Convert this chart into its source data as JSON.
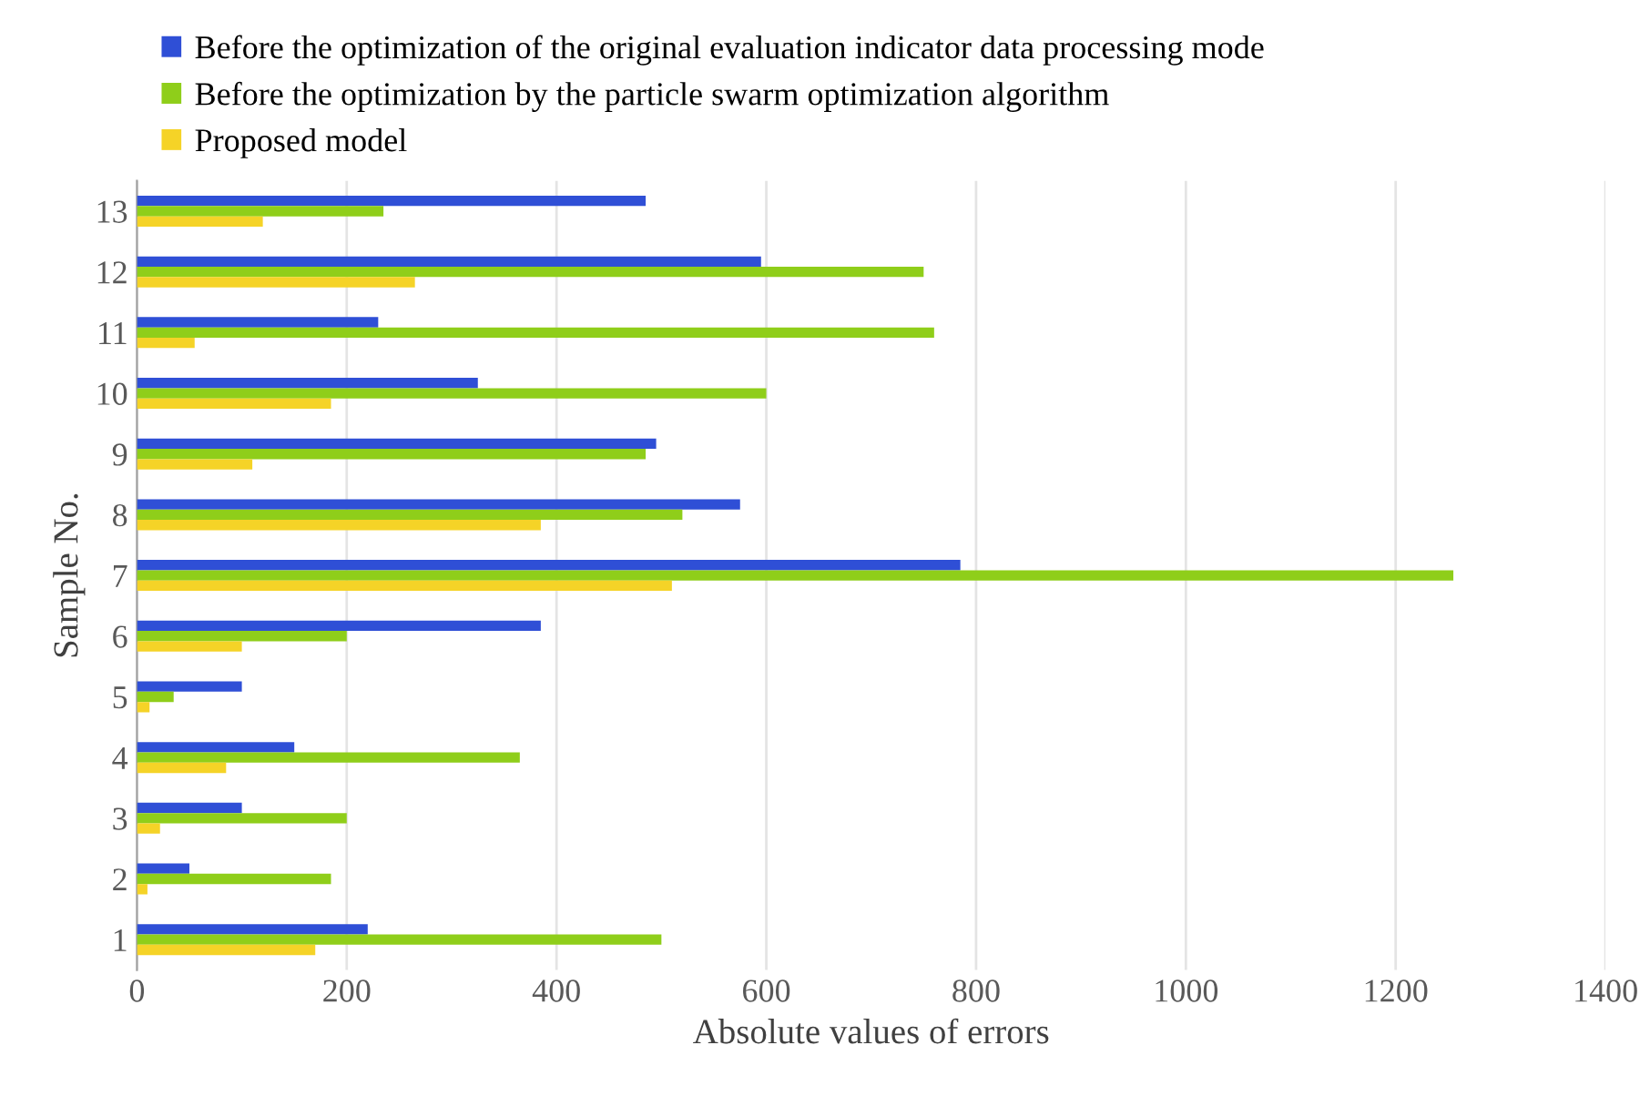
{
  "chart_data": {
    "type": "bar",
    "orientation": "horizontal",
    "xlabel": "Absolute values of errors",
    "ylabel": "Sample No.",
    "categories": [
      "13",
      "12",
      "11",
      "10",
      "9",
      "8",
      "7",
      "6",
      "5",
      "4",
      "3",
      "2",
      "1"
    ],
    "series": [
      {
        "name": "Before the optimization of the original evaluation indicator data processing mode",
        "color": "#2f4fd6",
        "values": [
          485,
          595,
          230,
          325,
          495,
          575,
          785,
          385,
          100,
          150,
          100,
          50,
          220
        ]
      },
      {
        "name": "Before the optimization by the particle swarm optimization algorithm",
        "color": "#8fce1a",
        "values": [
          235,
          750,
          760,
          600,
          485,
          520,
          1255,
          200,
          35,
          365,
          200,
          185,
          500
        ]
      },
      {
        "name": "Proposed model",
        "color": "#f5d327",
        "values": [
          120,
          265,
          55,
          185,
          110,
          385,
          510,
          100,
          12,
          85,
          22,
          10,
          170
        ]
      }
    ],
    "xlim": [
      0,
      1400
    ],
    "xticks": [
      0,
      200,
      400,
      600,
      800,
      1000,
      1200,
      1400
    ],
    "grid": "x",
    "legend": "top"
  }
}
